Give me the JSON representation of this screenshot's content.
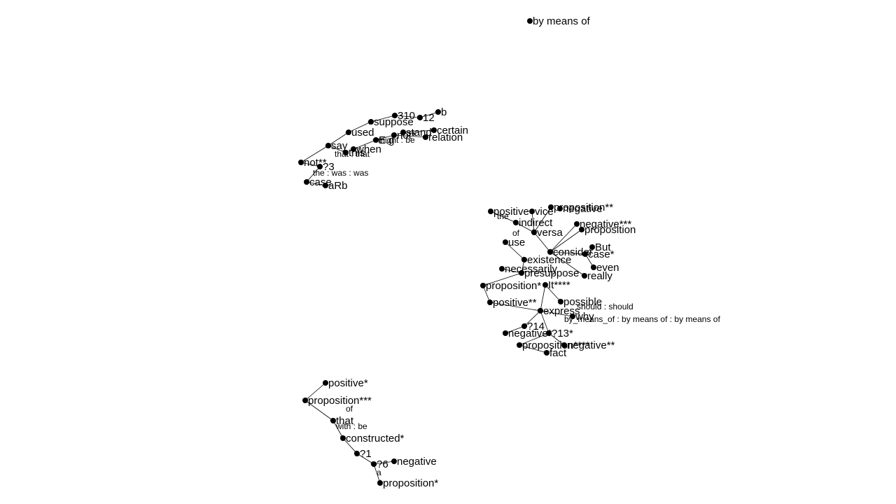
{
  "graph": {
    "nodes": [
      {
        "id": "n1",
        "label": "by means of"
      },
      {
        "id": "n2",
        "label": "310"
      },
      {
        "id": "n3",
        "label": "b"
      },
      {
        "id": "n4",
        "label": "12"
      },
      {
        "id": "n5",
        "label": "suppose"
      },
      {
        "id": "n6",
        "label": "used"
      },
      {
        "id": "n7",
        "label": "certain"
      },
      {
        "id": "n8",
        "label": "relation"
      },
      {
        "id": "n9",
        "label": "not*"
      },
      {
        "id": "n10",
        "label": "stand"
      },
      {
        "id": "n11",
        "label": "E.g"
      },
      {
        "id": "n12",
        "label": "say"
      },
      {
        "id": "n13",
        "label": "when"
      },
      {
        "id": "n14",
        "label": "this"
      },
      {
        "id": "n15",
        "label": "not**"
      },
      {
        "id": "n16",
        "label": "?3"
      },
      {
        "id": "n17",
        "label": "case"
      },
      {
        "id": "n18",
        "label": "aRb"
      },
      {
        "id": "n19",
        "label": "proposition**"
      },
      {
        "id": "n20",
        "label": "negative"
      },
      {
        "id": "n21",
        "label": "positive"
      },
      {
        "id": "n22",
        "label": "vice"
      },
      {
        "id": "n23",
        "label": "indirect"
      },
      {
        "id": "n24",
        "label": "negative***"
      },
      {
        "id": "n25",
        "label": "proposition"
      },
      {
        "id": "n26",
        "label": "versa"
      },
      {
        "id": "n27",
        "label": "use"
      },
      {
        "id": "n28",
        "label": "But"
      },
      {
        "id": "n29",
        "label": "consider"
      },
      {
        "id": "n30",
        "label": "case*"
      },
      {
        "id": "n31",
        "label": "existence"
      },
      {
        "id": "n32",
        "label": "even"
      },
      {
        "id": "n33",
        "label": "necessarily"
      },
      {
        "id": "n34",
        "label": "really"
      },
      {
        "id": "n35",
        "label": "presuppose"
      },
      {
        "id": "n36",
        "label": "proposition*"
      },
      {
        "id": "n37",
        "label": "It****"
      },
      {
        "id": "n38",
        "label": "positive**"
      },
      {
        "id": "n39",
        "label": "possible"
      },
      {
        "id": "n40",
        "label": "express"
      },
      {
        "id": "n41",
        "label": "why"
      },
      {
        "id": "n42",
        "label": "?14"
      },
      {
        "id": "n43",
        "label": "negative*"
      },
      {
        "id": "n44",
        "label": "?13*"
      },
      {
        "id": "n45",
        "label": "proposition****"
      },
      {
        "id": "n46",
        "label": "negative**"
      },
      {
        "id": "n47",
        "label": "fact"
      },
      {
        "id": "n48",
        "label": "positive*"
      },
      {
        "id": "n49",
        "label": "proposition***"
      },
      {
        "id": "n50",
        "label": "that"
      },
      {
        "id": "n51",
        "label": "constructed*"
      },
      {
        "id": "n52",
        "label": "?1"
      },
      {
        "id": "n53",
        "label": "?6"
      },
      {
        "id": "n54",
        "label": "negative"
      },
      {
        "id": "n55",
        "label": "proposition*"
      }
    ],
    "edge_labels": [
      "might : be",
      "that : that",
      "the : was : was",
      "the",
      "of",
      "should : should",
      "by_means_of : by means of : by means of",
      "with : be",
      "of",
      "a"
    ],
    "colors": {
      "ink": "#000000",
      "background": "#ffffff"
    }
  }
}
